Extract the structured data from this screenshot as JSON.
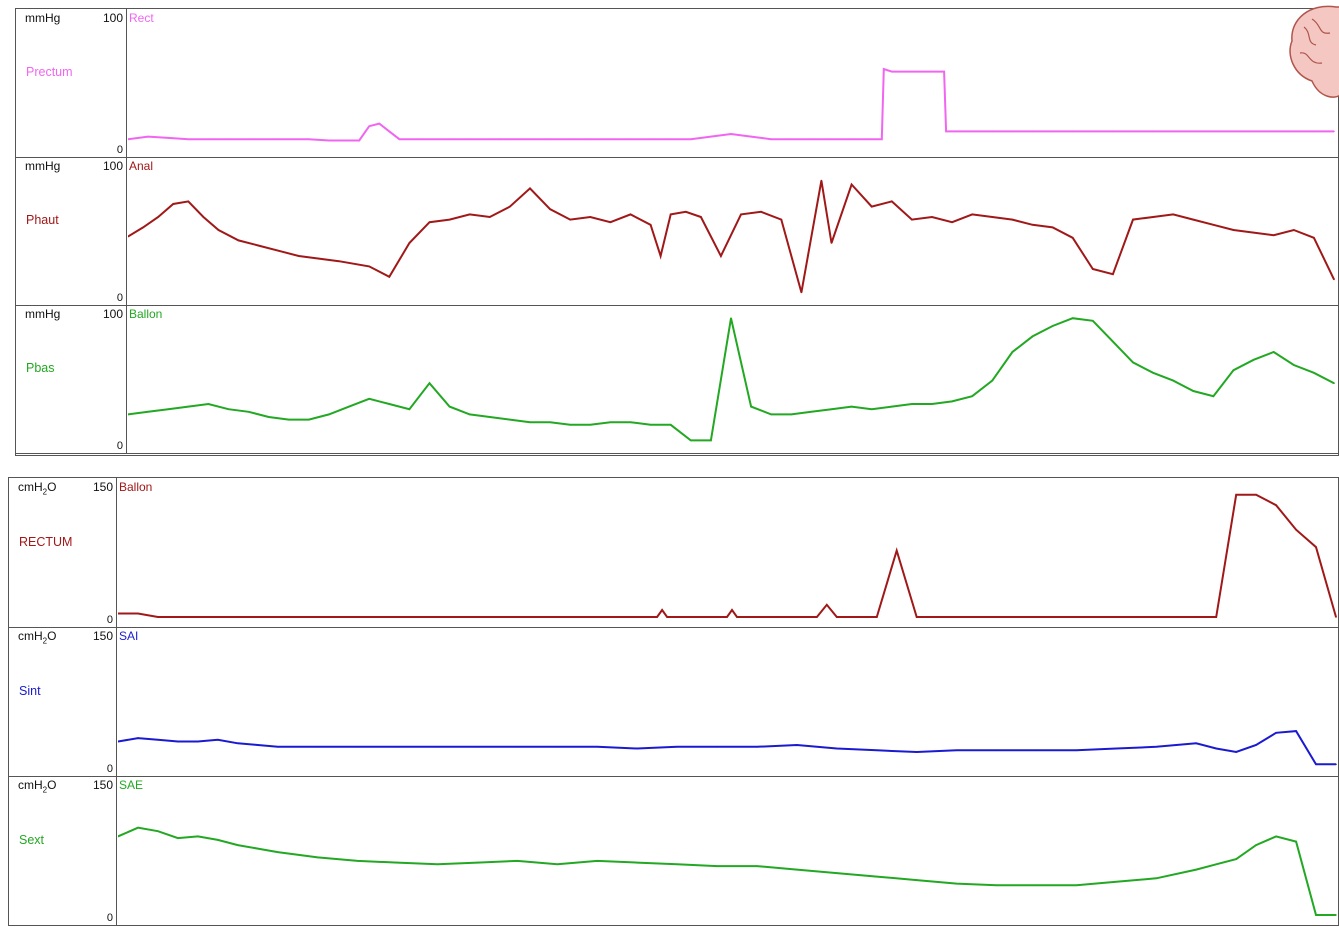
{
  "colors": {
    "magenta": "#f066f0",
    "darkred": "#a01818",
    "green": "#22a822",
    "blue": "#1a1ad0",
    "orange": "#c07a2c",
    "cyan": "#1aa8b4",
    "gray": "#555555"
  },
  "top": {
    "tracks": [
      {
        "unit": "mmHg",
        "max": "100",
        "zero": "0",
        "sensor": "Rect",
        "channel": "Prectum",
        "color": "#f066f0"
      },
      {
        "unit": "mmHg",
        "max": "100",
        "zero": "0",
        "sensor": "Anal",
        "channel": "Phaut",
        "color": "#a01818"
      },
      {
        "unit": "mmHg",
        "max": "100",
        "zero": "0",
        "sensor": "Ballon",
        "channel": "Pbas",
        "color": "#22a822"
      }
    ]
  },
  "bottom": {
    "tracks": [
      {
        "unit": "cmH",
        "sub": "2",
        "unit_tail": "O",
        "max": "150",
        "zero": "0",
        "sensor": "Ballon",
        "channel": "RECTUM",
        "color": "#a01818"
      },
      {
        "unit": "cmH",
        "sub": "2",
        "unit_tail": "O",
        "max": "150",
        "zero": "0",
        "sensor": "SAI",
        "channel": "Sint",
        "color": "#1a1ad0"
      },
      {
        "unit": "cmH",
        "sub": "2",
        "unit_tail": "O",
        "max": "150",
        "zero": "0",
        "sensor": "SAE",
        "channel": "Sext",
        "color": "#22a822"
      }
    ]
  },
  "chart_data": [
    {
      "type": "line",
      "title": "",
      "ylabel": "mmHg",
      "ylim": [
        0,
        100
      ],
      "series": [
        {
          "name": "Prectum",
          "color": "#f066f0",
          "x": [
            0,
            20,
            40,
            60,
            80,
            100,
            120,
            150,
            180,
            200,
            230,
            240,
            250,
            260,
            270,
            290,
            320,
            340,
            360,
            370,
            375,
            380,
            390,
            400,
            420,
            440,
            455,
            460,
            470,
            480,
            500,
            520,
            540,
            560,
            580,
            600,
            620,
            640,
            660,
            680,
            700,
            720,
            740,
            750,
            752,
            760,
            780,
            800,
            812,
            814,
            820,
            840,
            860,
            880,
            900,
            920,
            940,
            960,
            980,
            1000,
            1020,
            1040,
            1060,
            1080,
            1100,
            1120,
            1140,
            1160,
            1180,
            1200
          ],
          "y": [
            6,
            8,
            7,
            6,
            6,
            6,
            6,
            6,
            6,
            5,
            5,
            16,
            18,
            12,
            6,
            6,
            6,
            6,
            6,
            6,
            6,
            6,
            6,
            6,
            6,
            6,
            6,
            6,
            6,
            6,
            6,
            6,
            6,
            6,
            8,
            10,
            8,
            6,
            6,
            6,
            6,
            6,
            6,
            6,
            60,
            58,
            58,
            58,
            58,
            12,
            12,
            12,
            12,
            12,
            12,
            12,
            12,
            12,
            12,
            12,
            12,
            12,
            12,
            12,
            12,
            12,
            12,
            12,
            12,
            12
          ]
        },
        {
          "name": "Phaut",
          "color": "#a01818",
          "x": [
            0,
            15,
            30,
            45,
            60,
            75,
            90,
            110,
            130,
            150,
            170,
            190,
            210,
            240,
            260,
            280,
            300,
            320,
            340,
            360,
            380,
            400,
            420,
            440,
            460,
            480,
            500,
            520,
            530,
            540,
            555,
            570,
            590,
            610,
            630,
            650,
            670,
            690,
            700,
            720,
            740,
            760,
            780,
            800,
            820,
            840,
            860,
            880,
            900,
            920,
            940,
            960,
            980,
            1000,
            1020,
            1040,
            1060,
            1080,
            1100,
            1120,
            1140,
            1160,
            1180,
            1200
          ],
          "y": [
            45,
            52,
            60,
            70,
            72,
            60,
            50,
            42,
            38,
            34,
            30,
            28,
            26,
            22,
            14,
            40,
            56,
            58,
            62,
            60,
            68,
            82,
            66,
            58,
            60,
            56,
            62,
            54,
            30,
            62,
            64,
            60,
            30,
            62,
            64,
            58,
            2,
            88,
            40,
            85,
            68,
            72,
            58,
            60,
            56,
            62,
            60,
            58,
            54,
            52,
            44,
            20,
            16,
            58,
            60,
            62,
            58,
            54,
            50,
            48,
            46,
            50,
            44,
            12
          ]
        },
        {
          "name": "Pbas",
          "color": "#22a822",
          "x": [
            0,
            20,
            40,
            60,
            80,
            100,
            120,
            140,
            160,
            180,
            200,
            220,
            240,
            260,
            280,
            300,
            320,
            340,
            360,
            380,
            400,
            420,
            440,
            460,
            480,
            500,
            520,
            540,
            560,
            580,
            600,
            620,
            640,
            660,
            680,
            700,
            720,
            740,
            760,
            780,
            800,
            820,
            840,
            860,
            880,
            900,
            920,
            940,
            960,
            980,
            1000,
            1020,
            1040,
            1060,
            1080,
            1100,
            1120,
            1140,
            1160,
            1180,
            1200
          ],
          "y": [
            22,
            24,
            26,
            28,
            30,
            26,
            24,
            20,
            18,
            18,
            22,
            28,
            34,
            30,
            26,
            46,
            28,
            22,
            20,
            18,
            16,
            16,
            14,
            14,
            16,
            16,
            14,
            14,
            2,
            2,
            96,
            28,
            22,
            22,
            24,
            26,
            28,
            26,
            28,
            30,
            30,
            32,
            36,
            48,
            70,
            82,
            90,
            96,
            94,
            78,
            62,
            54,
            48,
            40,
            36,
            56,
            64,
            70,
            60,
            54,
            46
          ]
        }
      ]
    },
    {
      "type": "line",
      "title": "",
      "ylabel": "cmH2O",
      "ylim": [
        0,
        150
      ],
      "series": [
        {
          "name": "RECTUM",
          "color": "#a01818",
          "x": [
            0,
            20,
            40,
            80,
            120,
            200,
            300,
            400,
            500,
            520,
            540,
            545,
            550,
            600,
            610,
            615,
            620,
            660,
            700,
            710,
            720,
            740,
            760,
            780,
            800,
            820,
            860,
            900,
            940,
            980,
            1020,
            1060,
            1080,
            1100,
            1120,
            1140,
            1160,
            1180,
            1200,
            1220
          ],
          "y": [
            4,
            4,
            0,
            0,
            0,
            0,
            0,
            0,
            0,
            0,
            0,
            8,
            0,
            0,
            0,
            8,
            0,
            0,
            0,
            14,
            0,
            0,
            0,
            76,
            0,
            0,
            0,
            0,
            0,
            0,
            0,
            0,
            0,
            0,
            140,
            140,
            128,
            100,
            80,
            0
          ]
        },
        {
          "name": "Sint",
          "color": "#1a1ad0",
          "x": [
            0,
            20,
            40,
            60,
            80,
            100,
            120,
            140,
            160,
            200,
            240,
            280,
            320,
            360,
            400,
            440,
            480,
            520,
            560,
            600,
            640,
            680,
            720,
            760,
            800,
            840,
            880,
            920,
            960,
            1000,
            1040,
            1080,
            1100,
            1120,
            1140,
            1160,
            1180,
            1200,
            1220
          ],
          "y": [
            28,
            32,
            30,
            28,
            28,
            30,
            26,
            24,
            22,
            22,
            22,
            22,
            22,
            22,
            22,
            22,
            22,
            20,
            22,
            22,
            22,
            24,
            20,
            18,
            16,
            18,
            18,
            18,
            18,
            20,
            22,
            26,
            20,
            16,
            24,
            38,
            40,
            2,
            2
          ]
        },
        {
          "name": "Sext",
          "color": "#22a822",
          "x": [
            0,
            20,
            40,
            60,
            80,
            100,
            120,
            140,
            160,
            200,
            240,
            280,
            320,
            360,
            400,
            440,
            480,
            520,
            560,
            600,
            640,
            680,
            720,
            760,
            800,
            840,
            880,
            920,
            960,
            1000,
            1040,
            1080,
            1100,
            1120,
            1140,
            1160,
            1180,
            1200,
            1220
          ],
          "y": [
            90,
            100,
            96,
            88,
            90,
            86,
            80,
            76,
            72,
            66,
            62,
            60,
            58,
            60,
            62,
            58,
            62,
            60,
            58,
            56,
            56,
            52,
            48,
            44,
            40,
            36,
            34,
            34,
            34,
            38,
            42,
            52,
            58,
            64,
            80,
            90,
            84,
            0,
            0
          ]
        }
      ]
    }
  ]
}
